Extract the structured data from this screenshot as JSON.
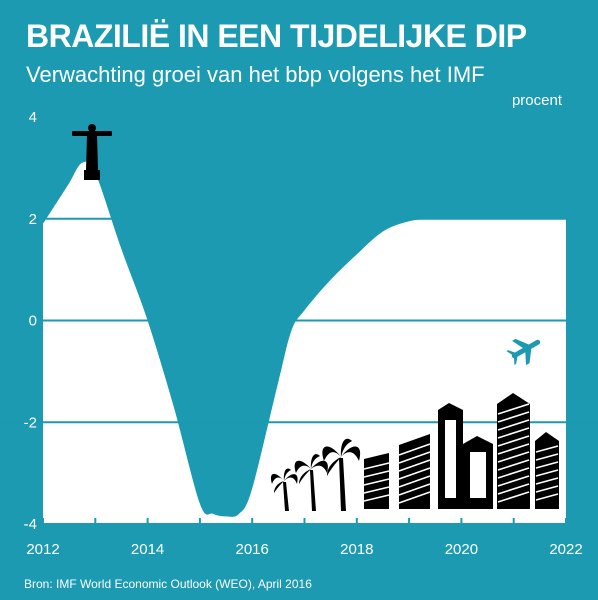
{
  "title": "BRAZILIË IN EEN TIJDELIJKE DIP",
  "subtitle": "Verwachting groei van het bbp volgens het IMF",
  "unit": "procent",
  "source": "Bron: IMF World Economic Outlook (WEO), April 2016",
  "colors": {
    "background": "#1b9ab1",
    "area": "#ffffff",
    "ink": "#000000"
  },
  "icons": [
    "christ-the-redeemer-icon",
    "palm-tree-icon",
    "skyline-icon",
    "airplane-icon"
  ],
  "chart_data": {
    "type": "area",
    "x": [
      2012,
      2012.25,
      2012.5,
      2012.75,
      2013,
      2013.5,
      2014,
      2014.5,
      2015,
      2015.25,
      2015.5,
      2015.75,
      2016,
      2016.5,
      2016.75,
      2017,
      2017.5,
      2018,
      2018.5,
      2019,
      2019.5,
      2020,
      2021,
      2022
    ],
    "y": [
      1.9,
      2.3,
      2.7,
      3.1,
      2.9,
      1.4,
      0.0,
      -1.7,
      -3.6,
      -3.8,
      -3.85,
      -3.8,
      -3.3,
      -1.2,
      -0.2,
      0.2,
      0.8,
      1.3,
      1.75,
      1.95,
      2.0,
      2.0,
      2.0,
      2.0
    ],
    "xlim": [
      2012,
      2022
    ],
    "ylim": [
      -4,
      4
    ],
    "xticks": [
      "2012",
      "2014",
      "2016",
      "2018",
      "2020",
      "2022"
    ],
    "yticks": [
      "4",
      "2",
      "0",
      "-2",
      "-4"
    ],
    "grid": true
  }
}
